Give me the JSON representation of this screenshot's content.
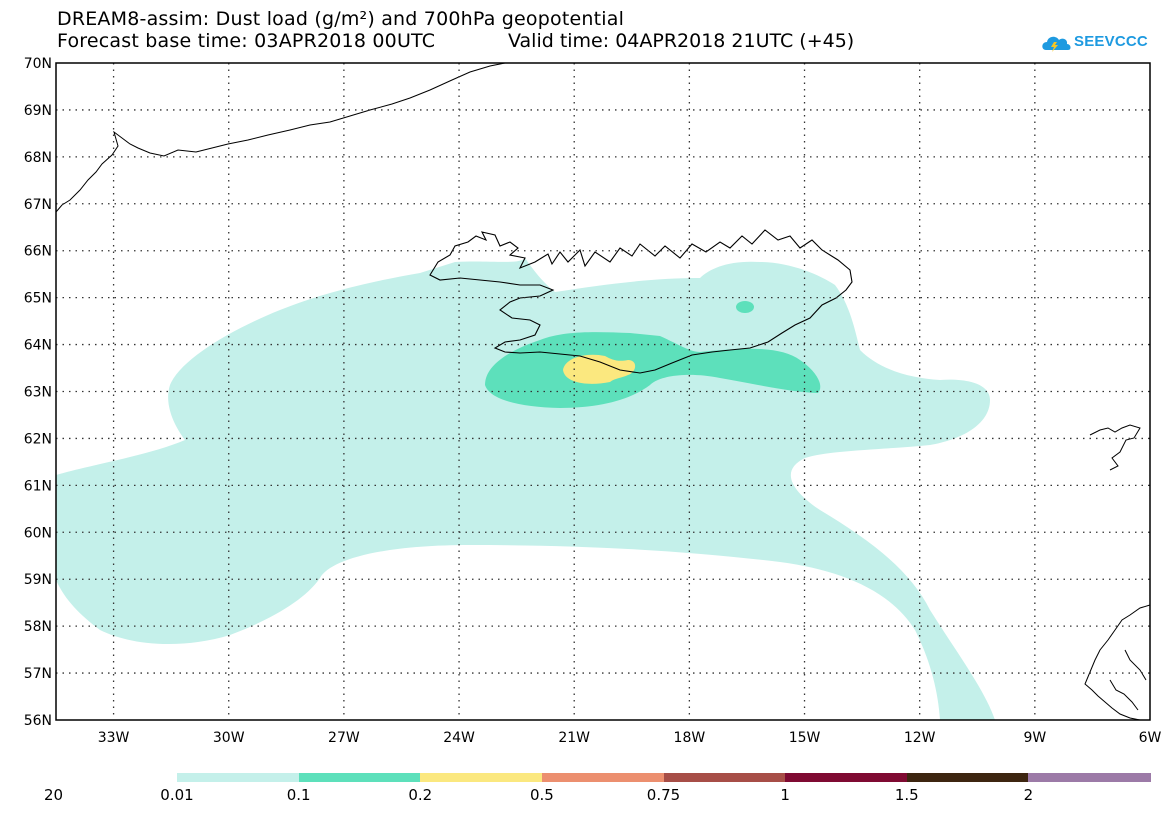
{
  "header": {
    "title_line1": "DREAM8-assim: Dust load (g/m²) and 700hPa geopotential",
    "base_time": "Forecast base time: 03APR2018 00UTC",
    "valid_time": "Valid time: 04APR2018 21UTC (+45)"
  },
  "logo": {
    "name": "cloud-logo-icon",
    "text": "SEEVCCC",
    "color": "#1e9ae0"
  },
  "map": {
    "lat_range": [
      56,
      70
    ],
    "lon_range": [
      -34.5,
      -6
    ],
    "lat_labels": [
      "70N",
      "69N",
      "68N",
      "67N",
      "66N",
      "65N",
      "64N",
      "63N",
      "62N",
      "61N",
      "60N",
      "59N",
      "58N",
      "57N",
      "56N"
    ],
    "lon_labels": [
      "33W",
      "30W",
      "27W",
      "24W",
      "21W",
      "18W",
      "15W",
      "12W",
      "9W",
      "6W"
    ],
    "lon_values": [
      -33,
      -30,
      -27,
      -24,
      -21,
      -18,
      -15,
      -12,
      -9,
      -6
    ],
    "lat_values": [
      70,
      69,
      68,
      67,
      66,
      65,
      64,
      63,
      62,
      61,
      60,
      59,
      58,
      57,
      56
    ]
  },
  "legend": {
    "arrow_scale_label": "20",
    "classes": [
      {
        "color": "#c4f0ea",
        "label": "0.01"
      },
      {
        "color": "#5de0bb",
        "label": "0.1"
      },
      {
        "color": "#fbe87f",
        "label": "0.2"
      },
      {
        "color": "#ec8f6f",
        "label": "0.5"
      },
      {
        "color": "#a74e47",
        "label": "0.75"
      },
      {
        "color": "#7f0a32",
        "label": "1"
      },
      {
        "color": "#3d2510",
        "label": "1.5"
      },
      {
        "color": "#9c7aa7",
        "label": "2"
      }
    ]
  }
}
